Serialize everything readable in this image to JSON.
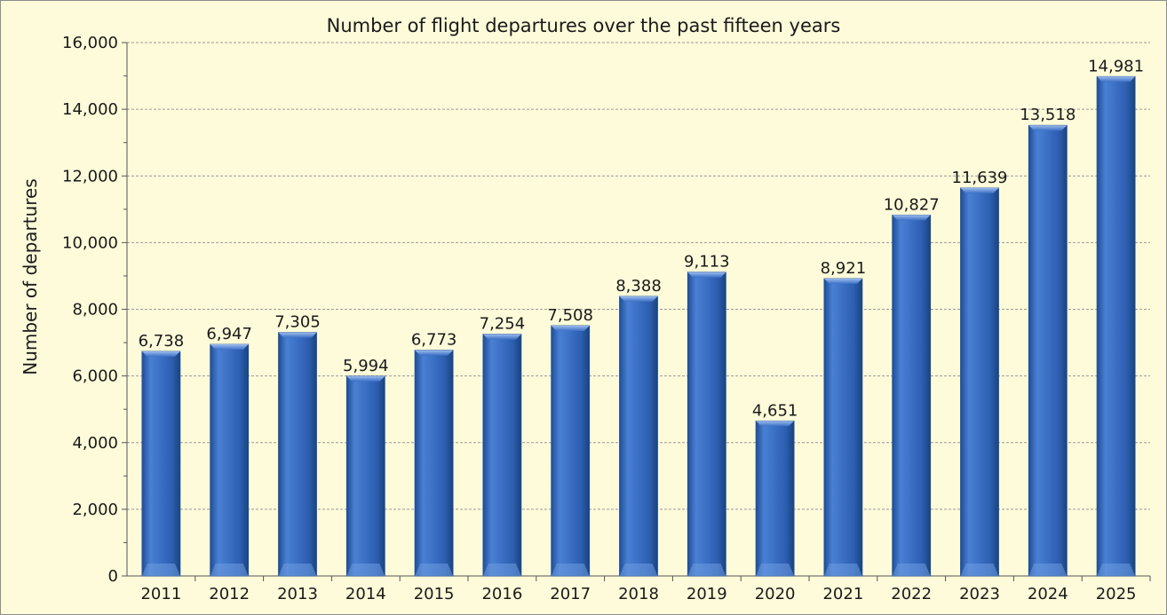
{
  "chart_data": {
    "type": "bar",
    "title": "Number of flight departures over the past fifteen years",
    "xlabel": "",
    "ylabel": "Number of departures",
    "categories": [
      "2011",
      "2012",
      "2013",
      "2014",
      "2015",
      "2016",
      "2017",
      "2018",
      "2019",
      "2020",
      "2021",
      "2022",
      "2023",
      "2024",
      "2025"
    ],
    "values": [
      6738,
      6947,
      7305,
      5994,
      6773,
      7254,
      7508,
      8388,
      9113,
      4651,
      8921,
      10827,
      11639,
      13518,
      14981
    ],
    "value_labels": [
      "6,738",
      "6,947",
      "7,305",
      "5,994",
      "6,773",
      "7,254",
      "7,508",
      "8,388",
      "9,113",
      "4,651",
      "8,921",
      "10,827",
      "11,639",
      "13,518",
      "14,981"
    ],
    "yticks": [
      0,
      2000,
      4000,
      6000,
      8000,
      10000,
      12000,
      14000,
      16000
    ],
    "ytick_labels": [
      "0",
      "2,000",
      "4,000",
      "6,000",
      "8,000",
      "10,000",
      "12,000",
      "14,000",
      "16,000"
    ],
    "ylim": [
      0,
      16000
    ],
    "grid": true,
    "legend": "none",
    "colors": {
      "bar": "#3a6fc4",
      "bar_dark": "#1f4e96",
      "bar_light": "#6e9ce0",
      "background": "#fdfbd9",
      "grid": "#9a9a9a",
      "axis": "#555555"
    }
  }
}
